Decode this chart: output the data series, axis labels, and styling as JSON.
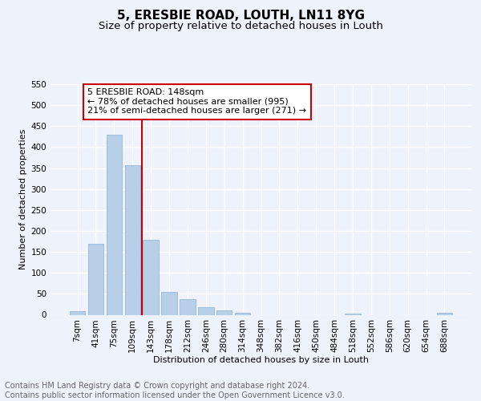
{
  "title": "5, ERESBIE ROAD, LOUTH, LN11 8YG",
  "subtitle": "Size of property relative to detached houses in Louth",
  "xlabel": "Distribution of detached houses by size in Louth",
  "ylabel": "Number of detached properties",
  "bar_labels": [
    "7sqm",
    "41sqm",
    "75sqm",
    "109sqm",
    "143sqm",
    "178sqm",
    "212sqm",
    "246sqm",
    "280sqm",
    "314sqm",
    "348sqm",
    "382sqm",
    "416sqm",
    "450sqm",
    "484sqm",
    "518sqm",
    "552sqm",
    "586sqm",
    "620sqm",
    "654sqm",
    "688sqm"
  ],
  "bar_values": [
    8,
    170,
    430,
    357,
    178,
    55,
    38,
    18,
    11,
    5,
    0,
    0,
    0,
    0,
    0,
    3,
    0,
    0,
    0,
    0,
    4
  ],
  "bar_color": "#b8cfe8",
  "bar_edge_color": "#8aafd4",
  "property_line_index": 4,
  "annotation_text": "5 ERESBIE ROAD: 148sqm\n← 78% of detached houses are smaller (995)\n21% of semi-detached houses are larger (271) →",
  "annotation_box_color": "#ffffff",
  "annotation_edge_color": "#cc0000",
  "vline_color": "#cc0000",
  "footer_text": "Contains HM Land Registry data © Crown copyright and database right 2024.\nContains public sector information licensed under the Open Government Licence v3.0.",
  "ylim": [
    0,
    550
  ],
  "yticks": [
    0,
    50,
    100,
    150,
    200,
    250,
    300,
    350,
    400,
    450,
    500,
    550
  ],
  "background_color": "#eef2fb",
  "grid_color": "#ffffff",
  "title_fontsize": 11,
  "subtitle_fontsize": 9.5,
  "axis_label_fontsize": 8,
  "tick_fontsize": 7.5,
  "footer_fontsize": 7,
  "annotation_fontsize": 8
}
